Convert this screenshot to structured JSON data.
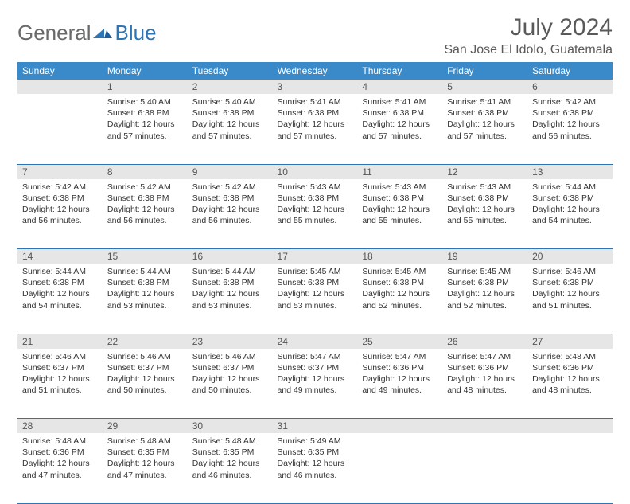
{
  "brand": {
    "general": "General",
    "blue": "Blue"
  },
  "title": "July 2024",
  "location": "San Jose El Idolo, Guatemala",
  "weekdays": [
    "Sunday",
    "Monday",
    "Tuesday",
    "Wednesday",
    "Thursday",
    "Friday",
    "Saturday"
  ],
  "colors": {
    "header_bg": "#3a8ac9",
    "header_text": "#ffffff",
    "rule": "#2e75b6",
    "daynum_bg": "#e6e6e6",
    "text": "#333333",
    "title_color": "#595959"
  },
  "calendar": {
    "type": "table",
    "start_weekday": 1,
    "days": [
      {
        "n": 1,
        "sr": "5:40 AM",
        "ss": "6:38 PM",
        "dl": "12 hours and 57 minutes."
      },
      {
        "n": 2,
        "sr": "5:40 AM",
        "ss": "6:38 PM",
        "dl": "12 hours and 57 minutes."
      },
      {
        "n": 3,
        "sr": "5:41 AM",
        "ss": "6:38 PM",
        "dl": "12 hours and 57 minutes."
      },
      {
        "n": 4,
        "sr": "5:41 AM",
        "ss": "6:38 PM",
        "dl": "12 hours and 57 minutes."
      },
      {
        "n": 5,
        "sr": "5:41 AM",
        "ss": "6:38 PM",
        "dl": "12 hours and 57 minutes."
      },
      {
        "n": 6,
        "sr": "5:42 AM",
        "ss": "6:38 PM",
        "dl": "12 hours and 56 minutes."
      },
      {
        "n": 7,
        "sr": "5:42 AM",
        "ss": "6:38 PM",
        "dl": "12 hours and 56 minutes."
      },
      {
        "n": 8,
        "sr": "5:42 AM",
        "ss": "6:38 PM",
        "dl": "12 hours and 56 minutes."
      },
      {
        "n": 9,
        "sr": "5:42 AM",
        "ss": "6:38 PM",
        "dl": "12 hours and 56 minutes."
      },
      {
        "n": 10,
        "sr": "5:43 AM",
        "ss": "6:38 PM",
        "dl": "12 hours and 55 minutes."
      },
      {
        "n": 11,
        "sr": "5:43 AM",
        "ss": "6:38 PM",
        "dl": "12 hours and 55 minutes."
      },
      {
        "n": 12,
        "sr": "5:43 AM",
        "ss": "6:38 PM",
        "dl": "12 hours and 55 minutes."
      },
      {
        "n": 13,
        "sr": "5:44 AM",
        "ss": "6:38 PM",
        "dl": "12 hours and 54 minutes."
      },
      {
        "n": 14,
        "sr": "5:44 AM",
        "ss": "6:38 PM",
        "dl": "12 hours and 54 minutes."
      },
      {
        "n": 15,
        "sr": "5:44 AM",
        "ss": "6:38 PM",
        "dl": "12 hours and 53 minutes."
      },
      {
        "n": 16,
        "sr": "5:44 AM",
        "ss": "6:38 PM",
        "dl": "12 hours and 53 minutes."
      },
      {
        "n": 17,
        "sr": "5:45 AM",
        "ss": "6:38 PM",
        "dl": "12 hours and 53 minutes."
      },
      {
        "n": 18,
        "sr": "5:45 AM",
        "ss": "6:38 PM",
        "dl": "12 hours and 52 minutes."
      },
      {
        "n": 19,
        "sr": "5:45 AM",
        "ss": "6:38 PM",
        "dl": "12 hours and 52 minutes."
      },
      {
        "n": 20,
        "sr": "5:46 AM",
        "ss": "6:38 PM",
        "dl": "12 hours and 51 minutes."
      },
      {
        "n": 21,
        "sr": "5:46 AM",
        "ss": "6:37 PM",
        "dl": "12 hours and 51 minutes."
      },
      {
        "n": 22,
        "sr": "5:46 AM",
        "ss": "6:37 PM",
        "dl": "12 hours and 50 minutes."
      },
      {
        "n": 23,
        "sr": "5:46 AM",
        "ss": "6:37 PM",
        "dl": "12 hours and 50 minutes."
      },
      {
        "n": 24,
        "sr": "5:47 AM",
        "ss": "6:37 PM",
        "dl": "12 hours and 49 minutes."
      },
      {
        "n": 25,
        "sr": "5:47 AM",
        "ss": "6:36 PM",
        "dl": "12 hours and 49 minutes."
      },
      {
        "n": 26,
        "sr": "5:47 AM",
        "ss": "6:36 PM",
        "dl": "12 hours and 48 minutes."
      },
      {
        "n": 27,
        "sr": "5:48 AM",
        "ss": "6:36 PM",
        "dl": "12 hours and 48 minutes."
      },
      {
        "n": 28,
        "sr": "5:48 AM",
        "ss": "6:36 PM",
        "dl": "12 hours and 47 minutes."
      },
      {
        "n": 29,
        "sr": "5:48 AM",
        "ss": "6:35 PM",
        "dl": "12 hours and 47 minutes."
      },
      {
        "n": 30,
        "sr": "5:48 AM",
        "ss": "6:35 PM",
        "dl": "12 hours and 46 minutes."
      },
      {
        "n": 31,
        "sr": "5:49 AM",
        "ss": "6:35 PM",
        "dl": "12 hours and 46 minutes."
      }
    ],
    "labels": {
      "sunrise": "Sunrise:",
      "sunset": "Sunset:",
      "daylight": "Daylight:"
    }
  }
}
